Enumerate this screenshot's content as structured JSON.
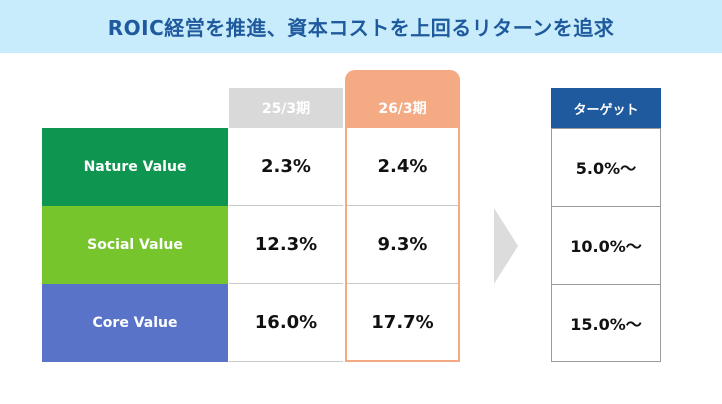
{
  "title": "ROIC経営を推進、資本コストを上回るリターンを追求",
  "columns": {
    "prev": "25/3期",
    "current": "26/3期",
    "target": "ターゲット"
  },
  "rows": [
    {
      "label": "Nature Value",
      "prev": "2.3%",
      "current": "2.4%",
      "target": "5.0%〜"
    },
    {
      "label": "Social Value",
      "prev": "12.3%",
      "current": "9.3%",
      "target": "10.0%〜"
    },
    {
      "label": "Core Value",
      "prev": "16.0%",
      "current": "17.7%",
      "target": "15.0%〜"
    }
  ],
  "colors": {
    "title_bg": "#c8ecfb",
    "title_text": "#1f5a9e",
    "nature": "#0e9650",
    "social": "#76c52d",
    "core": "#5873c7",
    "current_highlight": "#f4ab83",
    "target_header": "#1f5a9e"
  },
  "icons": {
    "arrow": "chevron-right-icon"
  }
}
